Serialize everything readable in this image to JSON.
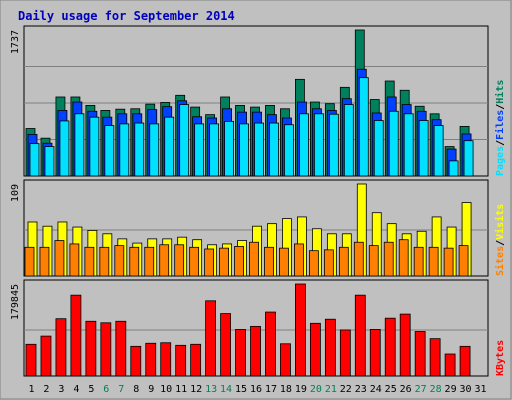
{
  "title": "Daily usage for September 2014",
  "colors": {
    "background": "#c0c0c0",
    "plot": "#c0c0c0",
    "title": "#0000c0",
    "hits": "#00805c",
    "files": "#0040ff",
    "pages": "#00e0ff",
    "visits": "#ffff00",
    "sites": "#ff8000",
    "kbytes": "#ff0000",
    "weekend": "#00805c",
    "weekday": "#000000"
  },
  "chart_data": [
    {
      "type": "bar",
      "panel": "hits-files-pages",
      "ymax_label": "1737",
      "ylim": [
        0,
        1737
      ],
      "legend": [
        "Pages",
        "Files",
        "Hits"
      ],
      "categories": [
        "1",
        "2",
        "3",
        "4",
        "5",
        "6",
        "7",
        "8",
        "9",
        "10",
        "11",
        "12",
        "13",
        "14",
        "15",
        "16",
        "17",
        "18",
        "19",
        "20",
        "21",
        "22",
        "23",
        "24",
        "25",
        "26",
        "27",
        "28",
        "29",
        "30",
        "31"
      ],
      "series": [
        {
          "name": "Hits",
          "values": [
            565,
            450,
            940,
            940,
            840,
            780,
            795,
            800,
            855,
            875,
            960,
            820,
            730,
            940,
            840,
            820,
            840,
            800,
            1150,
            880,
            860,
            1055,
            1737,
            910,
            1130,
            1020,
            830,
            740,
            350,
            590,
            null
          ]
        },
        {
          "name": "Files",
          "values": [
            495,
            390,
            780,
            880,
            770,
            700,
            740,
            740,
            790,
            825,
            895,
            705,
            690,
            800,
            760,
            760,
            730,
            690,
            880,
            800,
            780,
            920,
            1270,
            750,
            940,
            850,
            770,
            670,
            320,
            500,
            null
          ]
        },
        {
          "name": "Pages",
          "values": [
            385,
            350,
            655,
            740,
            700,
            600,
            620,
            630,
            620,
            700,
            850,
            620,
            620,
            650,
            620,
            630,
            630,
            610,
            740,
            740,
            735,
            850,
            1170,
            660,
            770,
            740,
            660,
            600,
            180,
            420,
            null
          ]
        }
      ]
    },
    {
      "type": "bar",
      "panel": "visits-sites",
      "ymax_label": "109",
      "ylim": [
        0,
        109
      ],
      "legend": [
        "Sites",
        "Visits"
      ],
      "categories": [
        "1",
        "2",
        "3",
        "4",
        "5",
        "6",
        "7",
        "8",
        "9",
        "10",
        "11",
        "12",
        "13",
        "14",
        "15",
        "16",
        "17",
        "18",
        "19",
        "20",
        "21",
        "22",
        "23",
        "24",
        "25",
        "26",
        "27",
        "28",
        "29",
        "30",
        "31"
      ],
      "series": [
        {
          "name": "Visits",
          "values": [
            64,
            59,
            64,
            58,
            54,
            50,
            44,
            39,
            44,
            44,
            46,
            43,
            37,
            38,
            42,
            59,
            62,
            68,
            70,
            56,
            50,
            50,
            109,
            75,
            62,
            50,
            53,
            70,
            58,
            87,
            null
          ]
        },
        {
          "name": "Sites",
          "values": [
            34,
            34,
            42,
            38,
            34,
            34,
            36,
            34,
            34,
            37,
            37,
            34,
            32,
            33,
            35,
            40,
            34,
            33,
            38,
            30,
            31,
            34,
            40,
            36,
            40,
            43,
            34,
            34,
            33,
            36,
            null
          ]
        }
      ]
    },
    {
      "type": "bar",
      "panel": "kbytes",
      "ymax_label": "179845",
      "ylim": [
        0,
        179845
      ],
      "legend": [
        "KBytes"
      ],
      "categories": [
        "1",
        "2",
        "3",
        "4",
        "5",
        "6",
        "7",
        "8",
        "9",
        "10",
        "11",
        "12",
        "13",
        "14",
        "15",
        "16",
        "17",
        "18",
        "19",
        "20",
        "21",
        "22",
        "23",
        "24",
        "25",
        "26",
        "27",
        "28",
        "29",
        "30",
        "31"
      ],
      "series": [
        {
          "name": "KBytes",
          "values": [
            62000,
            78000,
            112000,
            158000,
            107000,
            104000,
            107000,
            58000,
            64000,
            65000,
            60000,
            62000,
            147000,
            122000,
            91000,
            97000,
            125000,
            63000,
            179845,
            103000,
            111000,
            90000,
            158000,
            91000,
            113000,
            121000,
            87000,
            73000,
            43000,
            58000,
            null
          ]
        }
      ]
    }
  ],
  "weekend_days": [
    6,
    7,
    13,
    14,
    20,
    21,
    27,
    28
  ]
}
